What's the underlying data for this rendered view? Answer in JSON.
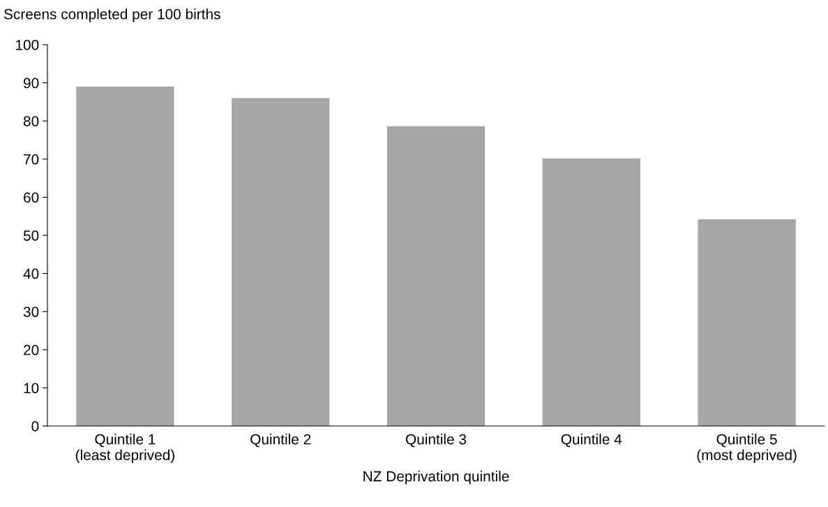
{
  "chart_data": {
    "type": "bar",
    "ylabel": "Screens completed per 100 births",
    "xlabel": "NZ Deprivation quintile",
    "categories": [
      "Quintile 1\n(least deprived)",
      "Quintile 2",
      "Quintile 3",
      "Quintile 4",
      "Quintile 5\n(most deprived)"
    ],
    "values": [
      89,
      86,
      78.6,
      70.2,
      54.2
    ],
    "color": "#a6a6a6",
    "ylim": [
      0,
      100
    ],
    "yticks": [
      0,
      10,
      20,
      30,
      40,
      50,
      60,
      70,
      80,
      90,
      100
    ],
    "grid": false,
    "legend": false
  }
}
